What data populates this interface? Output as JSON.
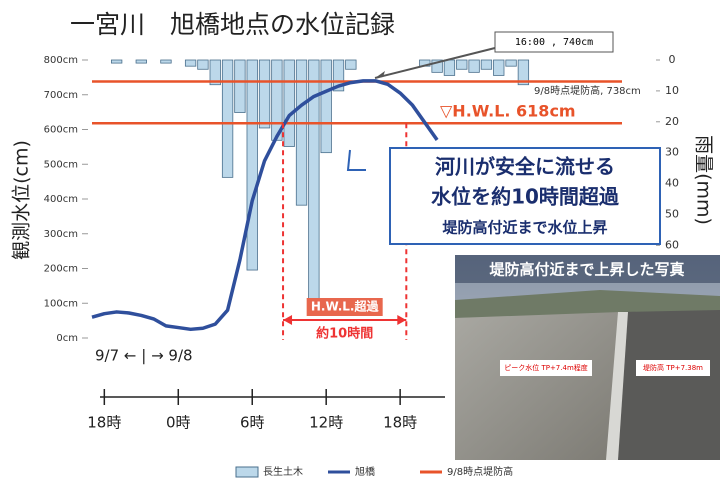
{
  "chart_data": {
    "type": "combo",
    "title": "一宮川　旭橋地点の水位記録",
    "y_label": "観測水位(cm)",
    "y2_label": "雨量(mm)",
    "xlim": [
      17,
      60
    ],
    "xticks": [
      {
        "value": 18,
        "label": "18時"
      },
      {
        "value": 24,
        "label": "0時"
      },
      {
        "value": 30,
        "label": "6時"
      },
      {
        "value": 36,
        "label": "12時"
      },
      {
        "value": 42,
        "label": "18時"
      }
    ],
    "ylim": [
      0,
      800
    ],
    "yticks": [
      {
        "value": 0,
        "label": "0cm"
      },
      {
        "value": 100,
        "label": "100cm"
      },
      {
        "value": 200,
        "label": "200cm"
      },
      {
        "value": 300,
        "label": "300cm"
      },
      {
        "value": 400,
        "label": "400cm"
      },
      {
        "value": 500,
        "label": "500cm"
      },
      {
        "value": 600,
        "label": "600cm"
      },
      {
        "value": 700,
        "label": "700cm"
      },
      {
        "value": 800,
        "label": "800cm"
      }
    ],
    "y2lim": [
      90,
      0
    ],
    "y2ticks": [
      0,
      10,
      20,
      30,
      40,
      50,
      60
    ],
    "series": [
      {
        "name": "長生土木",
        "type": "bar",
        "axis": "y2",
        "color": "#bcd8ea",
        "x": [
          19,
          21,
          23,
          25,
          26,
          27,
          28,
          29,
          30,
          31,
          32,
          33,
          34,
          35,
          36,
          37,
          38,
          44,
          45,
          46,
          47,
          48,
          49,
          50,
          51,
          52
        ],
        "values": [
          1,
          1,
          1,
          2,
          3,
          8,
          38,
          17,
          68,
          22,
          26,
          28,
          47,
          80,
          30,
          10,
          3,
          2,
          4,
          5,
          3,
          4,
          3,
          5,
          2,
          8
        ]
      },
      {
        "name": "旭橋",
        "type": "line",
        "color": "#2f4f9c",
        "x": [
          17,
          18,
          19,
          20,
          21,
          22,
          23,
          24,
          25,
          26,
          27,
          28,
          29,
          30,
          31,
          32,
          33,
          34,
          35,
          36,
          37,
          38,
          39,
          40,
          41,
          42,
          43,
          44,
          45
        ],
        "values": [
          60,
          70,
          75,
          72,
          65,
          55,
          35,
          30,
          25,
          28,
          40,
          80,
          225,
          395,
          510,
          580,
          640,
          670,
          695,
          710,
          725,
          735,
          740,
          740,
          730,
          705,
          670,
          620,
          570
        ]
      }
    ],
    "reference_lines": [
      {
        "name": "9/8時点堤防高",
        "value": 738,
        "color": "#e8532a"
      },
      {
        "value": 618,
        "color": "#e8532a"
      }
    ],
    "exceed_range": [
      32.5,
      42.5
    ],
    "annotations": [
      "16:00 , 740cm",
      "9/8時点堤防高, 738cm",
      "▽H.W.L.  618cm",
      "H.W.L.超過",
      "約10時間",
      "9/7 ← | → 9/8"
    ],
    "callout": [
      "河川が安全に流せる",
      "水位を約10時間超過",
      "堤防高付近まで水位上昇"
    ],
    "photo": {
      "caption": "堤防高付近まで上昇した写真",
      "labels": [
        "ピーク水位 TP+7.4m程度",
        "堤防高 TP+7.38m"
      ]
    }
  }
}
